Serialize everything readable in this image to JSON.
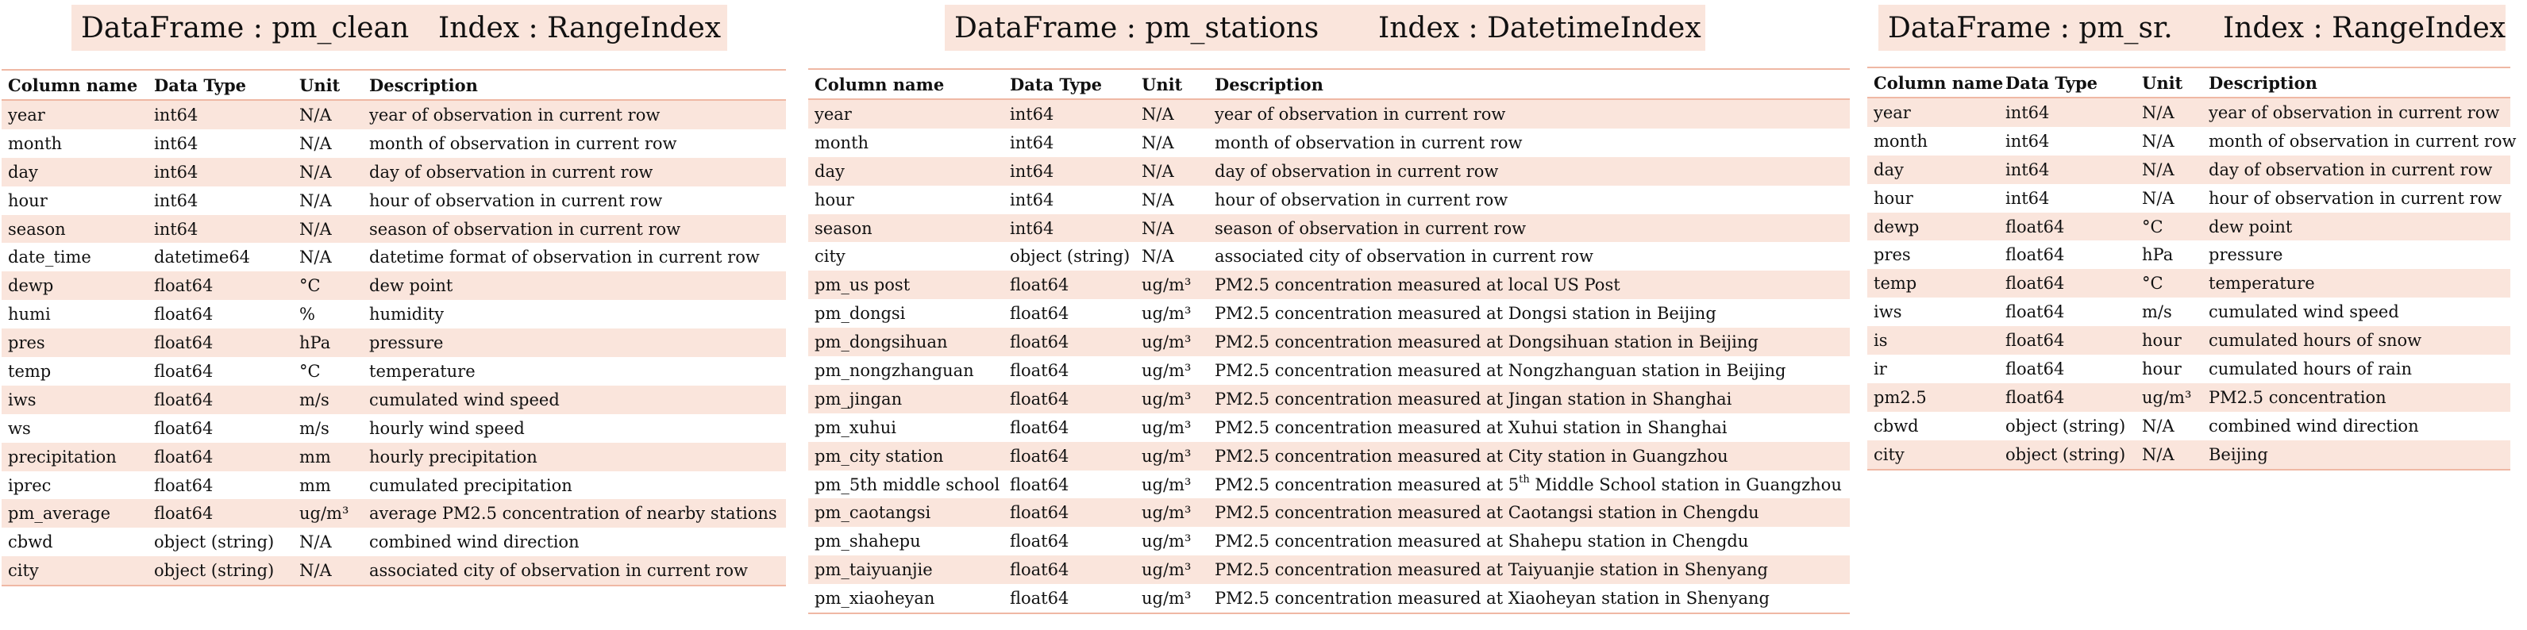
{
  "panels": [
    {
      "header": {
        "dataframe": "DataFrame : pm_clean",
        "index": "Index : RangeIndex"
      },
      "columns": [
        "Column name",
        "Data Type",
        "Unit",
        "Description"
      ],
      "rows": [
        [
          "year",
          "int64",
          "N/A",
          "year of observation in current row"
        ],
        [
          "month",
          "int64",
          "N/A",
          "month of observation in current row"
        ],
        [
          "day",
          "int64",
          "N/A",
          "day of observation in current row"
        ],
        [
          "hour",
          "int64",
          "N/A",
          "hour of observation in current row"
        ],
        [
          "season",
          "int64",
          "N/A",
          "season of observation in current row"
        ],
        [
          "date_time",
          "datetime64",
          "N/A",
          "datetime format of observation in current row"
        ],
        [
          "dewp",
          "float64",
          "°C",
          "dew point"
        ],
        [
          "humi",
          "float64",
          "%",
          "humidity"
        ],
        [
          "pres",
          "float64",
          "hPa",
          "pressure"
        ],
        [
          "temp",
          "float64",
          "°C",
          "temperature"
        ],
        [
          "iws",
          "float64",
          "m/s",
          "cumulated wind speed"
        ],
        [
          "ws",
          "float64",
          "m/s",
          "hourly wind speed"
        ],
        [
          "precipitation",
          "float64",
          "mm",
          "hourly precipitation"
        ],
        [
          "iprec",
          "float64",
          "mm",
          "cumulated precipitation"
        ],
        [
          "pm_average",
          "float64",
          "ug/m³",
          "average PM2.5 concentration of nearby stations"
        ],
        [
          "cbwd",
          "object (string)",
          "N/A",
          "combined wind direction"
        ],
        [
          "city",
          "object (string)",
          "N/A",
          "associated city of observation in current row"
        ]
      ]
    },
    {
      "header": {
        "dataframe": "DataFrame : pm_stations",
        "index": "Index : DatetimeIndex"
      },
      "columns": [
        "Column name",
        "Data Type",
        "Unit",
        "Description"
      ],
      "rows": [
        [
          "year",
          "int64",
          "N/A",
          "year of observation in current row"
        ],
        [
          "month",
          "int64",
          "N/A",
          "month of observation in current row"
        ],
        [
          "day",
          "int64",
          "N/A",
          "day of observation in current row"
        ],
        [
          "hour",
          "int64",
          "N/A",
          "hour of observation in current row"
        ],
        [
          "season",
          "int64",
          "N/A",
          "season of observation in current row"
        ],
        [
          "city",
          "object (string)",
          "N/A",
          "associated city of observation in current row"
        ],
        [
          "pm_us post",
          "float64",
          "ug/m³",
          "PM2.5 concentration measured at local US Post"
        ],
        [
          "pm_dongsi",
          "float64",
          "ug/m³",
          "PM2.5 concentration measured at Dongsi station in Beijing"
        ],
        [
          "pm_dongsihuan",
          "float64",
          "ug/m³",
          "PM2.5 concentration measured at Dongsihuan station in Beijing"
        ],
        [
          "pm_nongzhanguan",
          "float64",
          "ug/m³",
          "PM2.5 concentration measured at Nongzhanguan station in Beijing"
        ],
        [
          "pm_jingan",
          "float64",
          "ug/m³",
          "PM2.5 concentration measured at Jingan station in Shanghai"
        ],
        [
          "pm_xuhui",
          "float64",
          "ug/m³",
          "PM2.5 concentration measured at Xuhui station in Shanghai"
        ],
        [
          "pm_city station",
          "float64",
          "ug/m³",
          "PM2.5 concentration measured at City station in Guangzhou"
        ],
        [
          "pm_5th middle school",
          "float64",
          "ug/m³",
          "PM2.5 concentration measured at 5th Middle School station in Guangzhou"
        ],
        [
          "pm_caotangsi",
          "float64",
          "ug/m³",
          "PM2.5 concentration measured at Caotangsi station in Chengdu"
        ],
        [
          "pm_shahepu",
          "float64",
          "ug/m³",
          "PM2.5 concentration measured at Shahepu station in Chengdu"
        ],
        [
          "pm_taiyuanjie",
          "float64",
          "ug/m³",
          "PM2.5 concentration measured at Taiyuanjie station in Shenyang"
        ],
        [
          "pm_xiaoheyan",
          "float64",
          "ug/m³",
          "PM2.5 concentration measured at Xiaoheyan station in Shenyang"
        ]
      ]
    },
    {
      "header": {
        "dataframe": "DataFrame : pm_sr.",
        "index": "Index : RangeIndex"
      },
      "columns": [
        "Column name",
        "Data Type",
        "Unit",
        "Description"
      ],
      "rows": [
        [
          "year",
          "int64",
          "N/A",
          "year of observation in current row"
        ],
        [
          "month",
          "int64",
          "N/A",
          "month of observation in current row"
        ],
        [
          "day",
          "int64",
          "N/A",
          "day of observation in current row"
        ],
        [
          "hour",
          "int64",
          "N/A",
          "hour of observation in current row"
        ],
        [
          "dewp",
          "float64",
          "°C",
          "dew point"
        ],
        [
          "pres",
          "float64",
          "hPa",
          "pressure"
        ],
        [
          "temp",
          "float64",
          "°C",
          "temperature"
        ],
        [
          "iws",
          "float64",
          "m/s",
          "cumulated wind speed"
        ],
        [
          "is",
          "float64",
          "hour",
          "cumulated hours of snow"
        ],
        [
          "ir",
          "float64",
          "hour",
          "cumulated hours of rain"
        ],
        [
          "pm2.5",
          "float64",
          "ug/m³",
          "PM2.5 concentration"
        ],
        [
          "cbwd",
          "object (string)",
          "N/A",
          "combined wind direction"
        ],
        [
          "city",
          "object (string)",
          "N/A",
          "Beijing"
        ]
      ]
    }
  ]
}
